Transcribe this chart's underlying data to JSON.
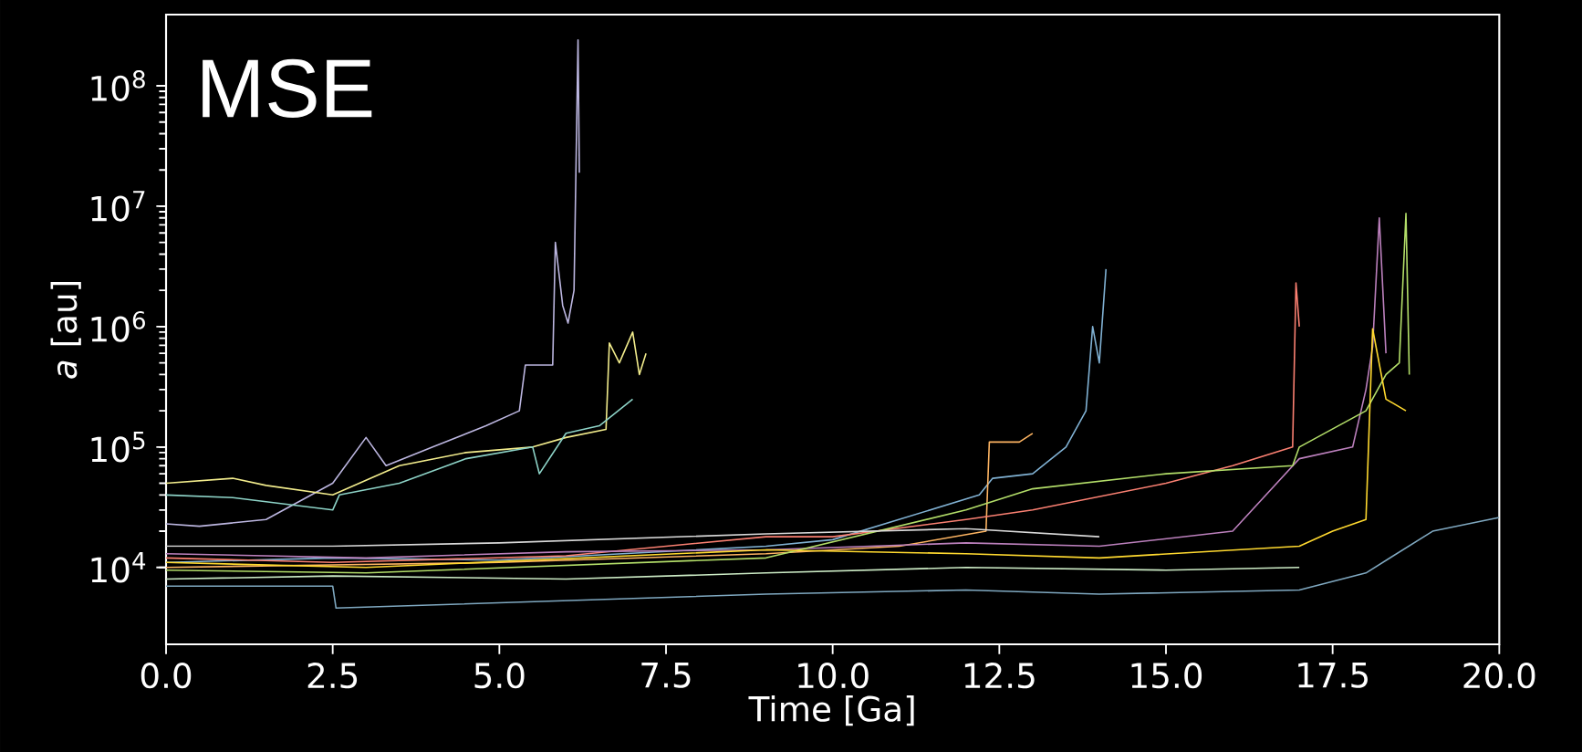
{
  "chart_data": {
    "type": "line",
    "title": "MSE",
    "xlabel": "Time [Ga]",
    "ylabel": "*a* [au]",
    "log": "y",
    "grid": false,
    "marker": "none",
    "line_style": "solid",
    "xlim": [
      0,
      20
    ],
    "ylim": [
      2300,
      390000000
    ],
    "xticks": [
      {
        "value": 0,
        "label": "0.0"
      },
      {
        "value": 2.5,
        "label": "2.5"
      },
      {
        "value": 5,
        "label": "5.0"
      },
      {
        "value": 7.5,
        "label": "7.5"
      },
      {
        "value": 10,
        "label": "10.0"
      },
      {
        "value": 12.5,
        "label": "12.5"
      },
      {
        "value": 15,
        "label": "15.0"
      },
      {
        "value": 17.5,
        "label": "17.5"
      },
      {
        "value": 20,
        "label": "20.0"
      }
    ],
    "yticks": [
      {
        "value": 10000,
        "label": "10$^{4}$"
      },
      {
        "value": 100000,
        "label": "10$^{5}$"
      },
      {
        "value": 1000000,
        "label": "10$^{6}$"
      },
      {
        "value": 10000000,
        "label": "10$^{7}$"
      },
      {
        "value": 100000000,
        "label": "10$^{8}$"
      }
    ],
    "series": [
      {
        "color": "#bcb6e0",
        "x": [
          0,
          0.5,
          1.5,
          2.5,
          3.0,
          3.3,
          4.0,
          4.8,
          5.3,
          5.39,
          5.8,
          5.84,
          5.95,
          6.03,
          6.12,
          6.18,
          6.2
        ],
        "values": [
          23000,
          22000,
          25000,
          50000,
          120000,
          70000,
          100000,
          150000,
          200000,
          480000,
          480000,
          5000000,
          1500000,
          1070000,
          2000000,
          240000000,
          19000000
        ]
      },
      {
        "color": "#f2ec8c",
        "x": [
          0,
          1,
          1.5,
          2.5,
          3.5,
          4.5,
          5.5,
          6.0,
          6.6,
          6.65,
          6.8,
          7.0,
          7.1,
          7.2
        ],
        "values": [
          50000,
          55000,
          48000,
          40000,
          70000,
          90000,
          100000,
          120000,
          140000,
          730000,
          500000,
          900000,
          400000,
          600000
        ]
      },
      {
        "color": "#8dd3c7",
        "x": [
          0,
          1,
          2.5,
          2.6,
          3.5,
          4.5,
          5.5,
          5.6,
          6.0,
          6.5,
          7.0
        ],
        "values": [
          40000,
          38000,
          30000,
          40000,
          50000,
          80000,
          100000,
          60000,
          130000,
          150000,
          250000
        ]
      },
      {
        "color": "#80b1d3",
        "x": [
          0,
          2.5,
          5,
          9,
          10,
          12.2,
          12.4,
          13.0,
          13.5,
          13.8,
          13.9,
          14.0,
          14.1
        ],
        "values": [
          11000,
          12000,
          11500,
          15000,
          17000,
          40000,
          55000,
          60000,
          100000,
          200000,
          1000000,
          500000,
          3000000
        ]
      },
      {
        "color": "#fdb462",
        "x": [
          0,
          2.5,
          5,
          9,
          11,
          12.3,
          12.35,
          12.8,
          13.0
        ],
        "values": [
          10000,
          10500,
          11000,
          13000,
          15000,
          20000,
          110000,
          110000,
          130000
        ]
      },
      {
        "color": "#fb8072",
        "x": [
          0,
          2.5,
          6,
          9,
          10,
          12,
          13,
          15,
          16,
          16.9,
          16.95,
          17.0
        ],
        "values": [
          12000,
          11000,
          12500,
          18000,
          18000,
          25000,
          30000,
          50000,
          70000,
          100000,
          2300000,
          1000000
        ]
      },
      {
        "color": "#bc80bd",
        "x": [
          0,
          3,
          6,
          9,
          12,
          14,
          16,
          17,
          17.8,
          18.0,
          18.1,
          18.2,
          18.3
        ],
        "values": [
          13000,
          12000,
          13500,
          14000,
          16000,
          15000,
          20000,
          80000,
          100000,
          300000,
          680000,
          8000000,
          600000
        ]
      },
      {
        "color": "#b3de69",
        "x": [
          0,
          3,
          9,
          12,
          13,
          15,
          16.9,
          17.0,
          18.0,
          18.3,
          18.5,
          18.6,
          18.65
        ],
        "values": [
          9500,
          9000,
          12000,
          30000,
          45000,
          60000,
          70000,
          100000,
          200000,
          400000,
          500000,
          8700000,
          400000
        ]
      },
      {
        "color": "#ffd92f",
        "x": [
          0,
          3,
          9,
          12,
          14,
          17,
          17.5,
          18.0,
          18.1,
          18.3,
          18.6
        ],
        "values": [
          11000,
          10000,
          14000,
          13000,
          12000,
          15000,
          20000,
          25000,
          960000,
          250000,
          200000
        ]
      },
      {
        "color": "#7fa8c0",
        "x": [
          0,
          2.5,
          2.55,
          9,
          12,
          14,
          17,
          18,
          19,
          20
        ],
        "values": [
          7000,
          7000,
          4600,
          6000,
          6500,
          6000,
          6500,
          9000,
          20000,
          26000
        ]
      },
      {
        "color": "#ccebc5",
        "x": [
          0,
          2.5,
          6,
          9,
          12,
          15,
          17
        ],
        "values": [
          8000,
          8500,
          8000,
          9000,
          10000,
          9500,
          10000
        ]
      },
      {
        "color": "#d9d9d9",
        "x": [
          0,
          2.5,
          5,
          9,
          12,
          14
        ],
        "values": [
          15000,
          15000,
          16000,
          19000,
          21000,
          18000
        ]
      }
    ]
  }
}
